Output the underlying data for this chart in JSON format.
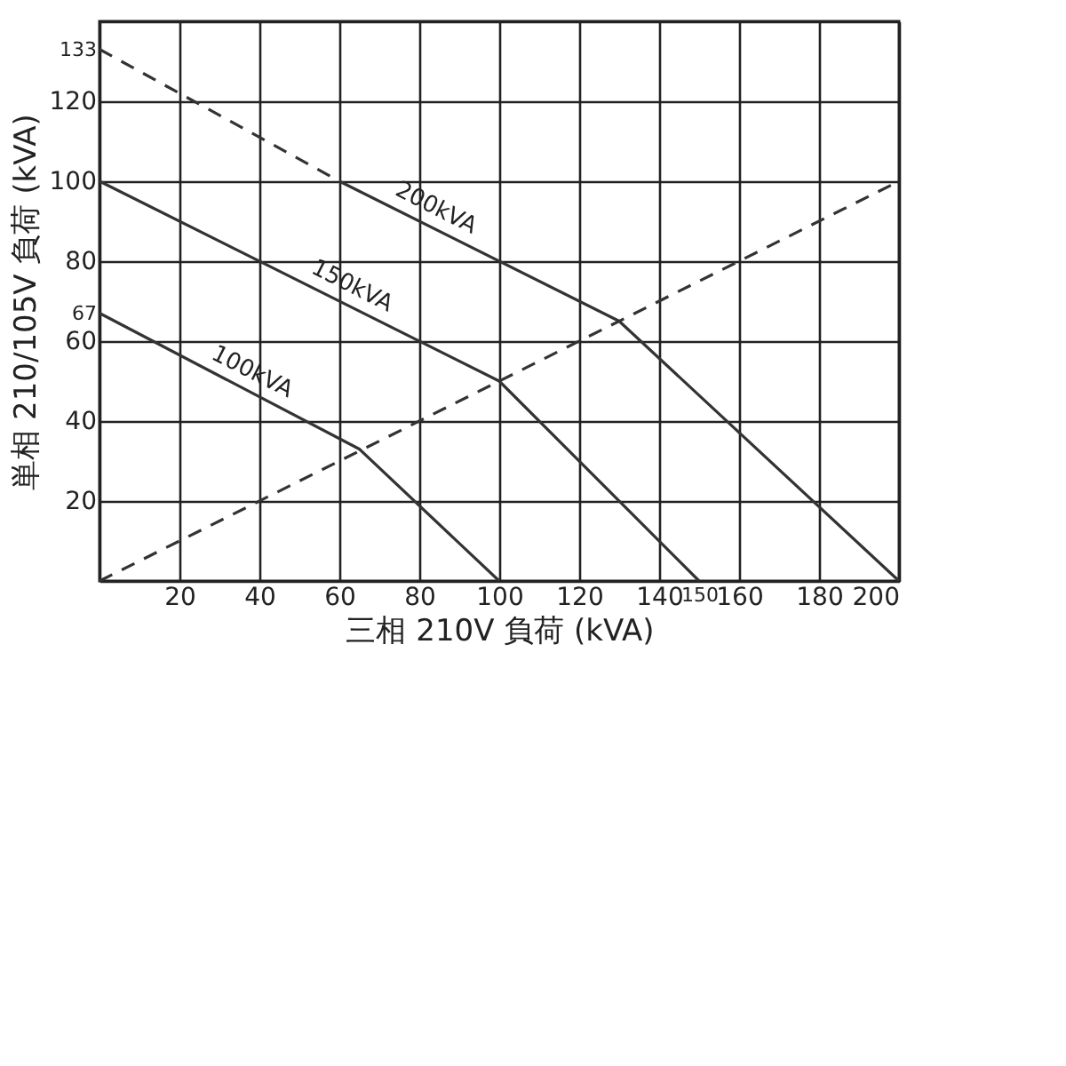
{
  "chart_data": {
    "type": "line",
    "xlabel": "三相 210V 負荷 (kVA)",
    "ylabel": "単相 210/105V 負荷 (kVA)",
    "xlim": [
      0,
      200
    ],
    "ylim": [
      0,
      140
    ],
    "xticks": [
      {
        "value": 0,
        "label": null
      },
      20,
      40,
      60,
      80,
      100,
      120,
      140,
      160,
      180,
      200,
      150
    ],
    "yticks": [
      {
        "value": 0,
        "label": null
      },
      20,
      40,
      60,
      80,
      100,
      120,
      {
        "value": 140,
        "label": null
      },
      133,
      67
    ],
    "grid": true,
    "marker": "none",
    "series": [
      {
        "color": "#333333",
        "line_style": "dashed",
        "x": [
          0,
          60
        ],
        "values": [
          133,
          100
        ]
      },
      {
        "color": "#333333",
        "line_style": "solid",
        "x": [
          60,
          130,
          200
        ],
        "values": [
          100,
          65,
          0
        ]
      },
      {
        "color": "#333333",
        "line_style": "solid",
        "x": [
          0,
          100,
          150
        ],
        "values": [
          100,
          50,
          0
        ]
      },
      {
        "color": "#333333",
        "line_style": "solid",
        "x": [
          0,
          65,
          100
        ],
        "values": [
          67,
          33,
          0
        ]
      },
      {
        "color": "#333333",
        "line_style": "dashed",
        "x": [
          0,
          200
        ],
        "values": [
          0,
          100
        ]
      }
    ],
    "annotations": [
      {
        "text": "200kVA",
        "x": 82,
        "y": 89
      },
      {
        "text": "150kVA",
        "x": 61,
        "y": 69.5
      },
      {
        "text": "100kVA",
        "x": 36,
        "y": 48
      }
    ]
  }
}
